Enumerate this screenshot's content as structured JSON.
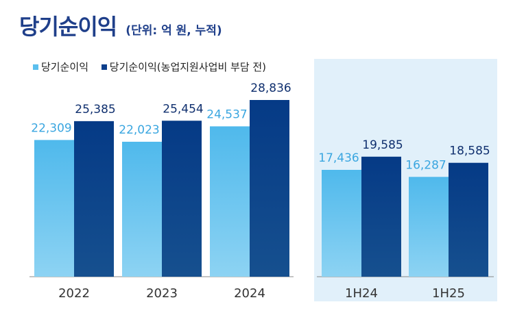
{
  "header": {
    "title": "당기순이익",
    "subtitle": "(단위: 억 원, 누적)"
  },
  "legend": [
    {
      "label": "당기순이익",
      "color": "#5bbfee"
    },
    {
      "label": "당기순이익(농업지원사업비 부담 전)",
      "color": "#0d3f8c"
    }
  ],
  "chart_data": {
    "type": "bar",
    "title": "당기순이익",
    "subtitle": "(단위: 억 원, 누적)",
    "categories": [
      "2022",
      "2023",
      "2024",
      "1H24",
      "1H25"
    ],
    "series": [
      {
        "name": "당기순이익",
        "values": [
          22309,
          22023,
          24537,
          17436,
          16287
        ],
        "color": "#5bbfee"
      },
      {
        "name": "당기순이익(농업지원사업비 부담 전)",
        "values": [
          25385,
          25454,
          28836,
          19585,
          18585
        ],
        "color": "#0d3f8c"
      }
    ],
    "ylim": [
      0,
      29000
    ],
    "grid": false,
    "legend_position": "top-left",
    "highlight_groups": [
      "1H24",
      "1H25"
    ]
  }
}
